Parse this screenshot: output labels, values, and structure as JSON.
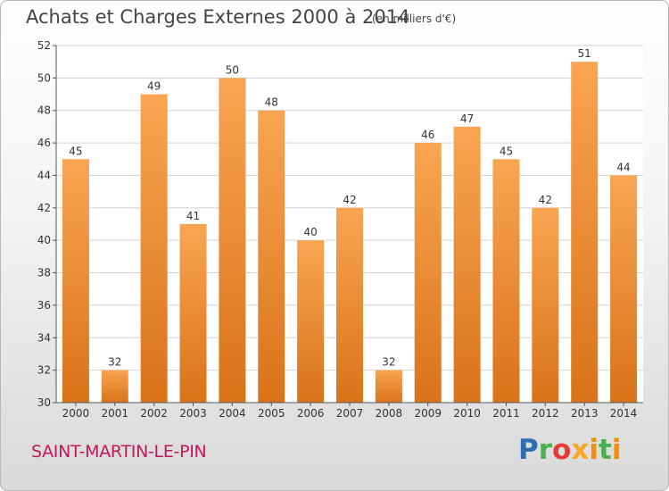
{
  "title": "Achats et Charges Externes 2000 à 2014",
  "unit_note": "(en milliers d'€)",
  "city": "SAINT-MARTIN-LE-PIN",
  "logo": {
    "text": "Proxiti",
    "colors": [
      "#2e6db4",
      "#4caf50",
      "#e53935",
      "#f9a825",
      "#fb8c00",
      "#4caf50",
      "#fb8c00"
    ]
  },
  "chart_data": {
    "type": "bar",
    "categories": [
      "2000",
      "2001",
      "2002",
      "2003",
      "2004",
      "2005",
      "2006",
      "2007",
      "2008",
      "2009",
      "2010",
      "2011",
      "2012",
      "2013",
      "2014"
    ],
    "values": [
      45,
      32,
      49,
      41,
      50,
      48,
      40,
      42,
      32,
      46,
      47,
      45,
      42,
      51,
      44
    ],
    "ylim": [
      30,
      52
    ],
    "yticks": [
      30,
      32,
      34,
      36,
      38,
      40,
      42,
      44,
      46,
      48,
      50,
      52
    ],
    "grid": true,
    "legend": "none",
    "bar_color_top": "#f9a552",
    "bar_color_bottom": "#d9731a",
    "xlabel": "",
    "ylabel": ""
  }
}
